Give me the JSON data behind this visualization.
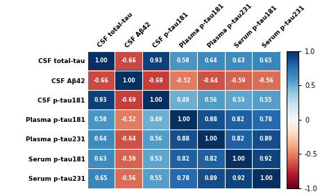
{
  "labels": [
    "CSF total-tau",
    "CSF Aβ42",
    "CSF p-tau181",
    "Plasma p-tau181",
    "Plasma p-tau231",
    "Serum p-tau181",
    "Serum p-tau231"
  ],
  "matrix": [
    [
      1.0,
      -0.66,
      0.93,
      0.58,
      0.64,
      0.63,
      0.65
    ],
    [
      -0.66,
      1.0,
      -0.69,
      -0.52,
      -0.64,
      -0.59,
      -0.56
    ],
    [
      0.93,
      -0.69,
      1.0,
      0.49,
      0.56,
      0.53,
      0.55
    ],
    [
      0.58,
      -0.52,
      0.49,
      1.0,
      0.88,
      0.82,
      0.78
    ],
    [
      0.64,
      -0.64,
      0.56,
      0.88,
      1.0,
      0.82,
      0.89
    ],
    [
      0.63,
      -0.59,
      0.53,
      0.82,
      0.82,
      1.0,
      0.92
    ],
    [
      0.65,
      -0.56,
      0.55,
      0.78,
      0.89,
      0.92,
      1.0
    ]
  ],
  "vmin": -1.0,
  "vmax": 1.0,
  "cell_text_fontsize": 5.5,
  "label_fontsize": 6.5,
  "colorbar_label_fontsize": 7,
  "background_color": "#ffffff",
  "colorbar_ticks": [
    -1.0,
    -0.5,
    0.0,
    0.5,
    1.0
  ],
  "colorbar_ticklabels": [
    "-1.0",
    "-0.5",
    "0",
    "0.5",
    "1.0"
  ]
}
